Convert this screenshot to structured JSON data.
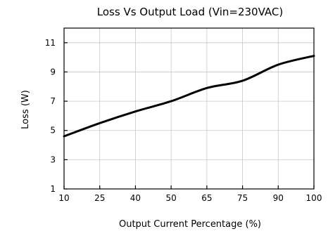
{
  "chart_data": {
    "type": "line",
    "title": "Loss Vs Output Load (Vin=230VAC)",
    "xlabel": "Output Current Percentage (%)",
    "ylabel": "Loss (W)",
    "x_ticks": [
      10,
      25,
      40,
      50,
      65,
      75,
      90,
      100
    ],
    "y_ticks": [
      1,
      3,
      5,
      7,
      9,
      11
    ],
    "ylim": [
      1,
      12
    ],
    "grid": true,
    "series": [
      {
        "x": [
          10,
          25,
          40,
          50,
          65,
          75,
          90,
          100
        ],
        "y": [
          4.6,
          5.5,
          6.3,
          7.0,
          7.9,
          8.4,
          9.5,
          10.1
        ]
      }
    ]
  }
}
